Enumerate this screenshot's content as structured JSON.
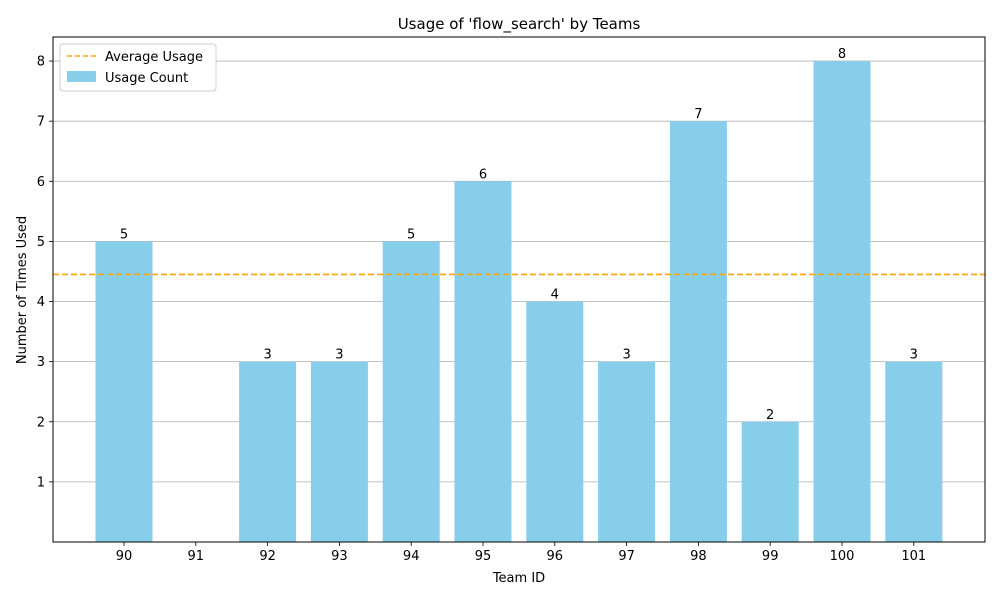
{
  "chart_data": {
    "type": "bar",
    "title": "Usage of 'flow_search' by Teams",
    "xlabel": "Team ID",
    "ylabel": "Number of Times Used",
    "categories": [
      "90",
      "91",
      "92",
      "93",
      "94",
      "95",
      "96",
      "97",
      "98",
      "99",
      "100",
      "101"
    ],
    "series": [
      {
        "name": "Usage Count",
        "values": [
          5,
          0,
          3,
          3,
          5,
          6,
          4,
          3,
          7,
          2,
          8,
          3
        ],
        "color": "#87CEEB"
      }
    ],
    "data_labels": [
      "5",
      "",
      "3",
      "3",
      "5",
      "6",
      "4",
      "3",
      "7",
      "2",
      "8",
      "3"
    ],
    "average": {
      "name": "Average Usage",
      "value": 4.45,
      "color": "#FFA500",
      "style": "dashed"
    },
    "ylim": [
      0,
      8.4
    ],
    "yticks": [
      1,
      2,
      3,
      4,
      5,
      6,
      7,
      8
    ],
    "grid": "horizontal",
    "legend_position": "top-left"
  }
}
